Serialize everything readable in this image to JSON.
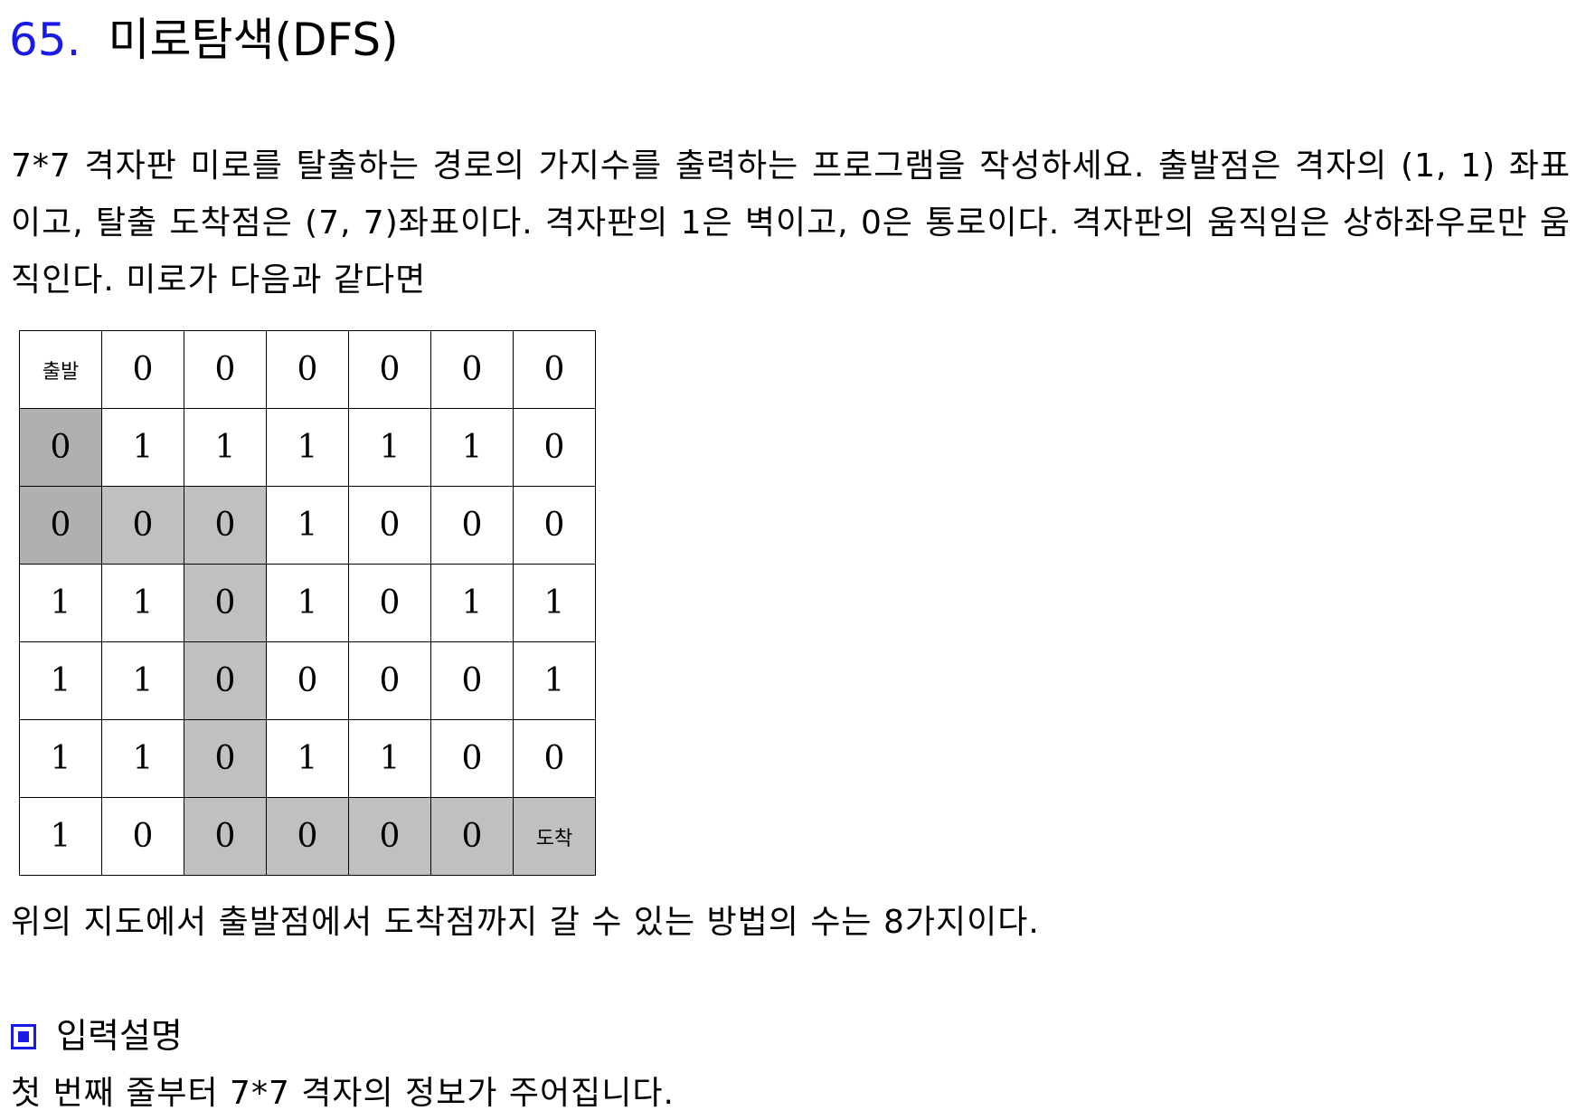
{
  "problem": {
    "number": "65.",
    "title": "미로탐색(DFS)"
  },
  "description": "7*7 격자판 미로를 탈출하는 경로의 가지수를 출력하는 프로그램을 작성하세요.  출발점은 격자의 (1, 1) 좌표이고, 탈출 도착점은 (7, 7)좌표이다. 격자판의 1은 벽이고, 0은 통로이다. 격자판의 움직임은 상하좌우로만 움직인다. 미로가 다음과 같다면",
  "maze": {
    "rows": [
      [
        "출발",
        "0",
        "0",
        "0",
        "0",
        "0",
        "0"
      ],
      [
        "0",
        "1",
        "1",
        "1",
        "1",
        "1",
        "0"
      ],
      [
        "0",
        "0",
        "0",
        "1",
        "0",
        "0",
        "0"
      ],
      [
        "1",
        "1",
        "0",
        "1",
        "0",
        "1",
        "1"
      ],
      [
        "1",
        "1",
        "0",
        "0",
        "0",
        "0",
        "1"
      ],
      [
        "1",
        "1",
        "0",
        "1",
        "1",
        "0",
        "0"
      ],
      [
        "1",
        "0",
        "0",
        "0",
        "0",
        "0",
        "도착"
      ]
    ],
    "highlight": [
      [
        0,
        0,
        0,
        0,
        0,
        0,
        0
      ],
      [
        2,
        0,
        0,
        0,
        0,
        0,
        0
      ],
      [
        2,
        1,
        1,
        0,
        0,
        0,
        0
      ],
      [
        0,
        0,
        1,
        0,
        0,
        0,
        0
      ],
      [
        0,
        0,
        1,
        0,
        0,
        0,
        0
      ],
      [
        0,
        0,
        1,
        0,
        0,
        0,
        0
      ],
      [
        0,
        0,
        1,
        1,
        1,
        1,
        1
      ]
    ],
    "colors": {
      "path": "#c0c0c0",
      "dark": "#b0b0b0"
    }
  },
  "result": "위의 지도에서 출발점에서 도착점까지 갈 수 있는 방법의 수는 8가지이다.",
  "input_section": {
    "marker_icon": "square-bullet-icon",
    "heading": "입력설명",
    "text": "첫 번째 줄부터 7*7 격자의 정보가 주어집니다."
  },
  "accent_color": "#1a1ae6"
}
